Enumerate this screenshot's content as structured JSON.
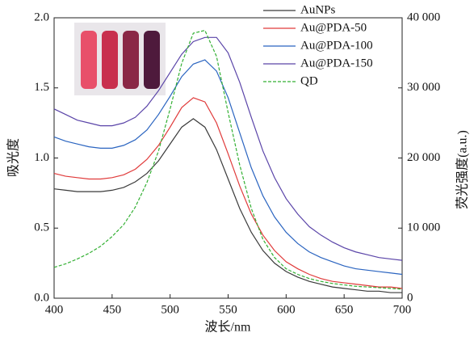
{
  "chart_data": {
    "type": "line",
    "x": [
      400,
      410,
      420,
      430,
      440,
      450,
      460,
      470,
      480,
      490,
      500,
      510,
      520,
      530,
      540,
      550,
      560,
      570,
      580,
      590,
      600,
      610,
      620,
      630,
      640,
      650,
      660,
      670,
      680,
      690,
      700
    ],
    "xlabel": "波长/nm",
    "ylabel": "吸光度",
    "y2label": "荧光强度(a.u.)",
    "xlim": [
      400,
      700
    ],
    "xticks": [
      400,
      450,
      500,
      550,
      600,
      650,
      700
    ],
    "ylim": [
      0,
      2
    ],
    "yticks": [
      {
        "value": 0,
        "label": "0.0"
      },
      {
        "value": 0.5,
        "label": "0.5"
      },
      {
        "value": 1,
        "label": "1.0"
      },
      {
        "value": 1.5,
        "label": "1.5"
      },
      {
        "value": 2,
        "label": "2.0"
      }
    ],
    "y2lim": [
      0,
      40000
    ],
    "y2ticks": [
      0,
      {
        "value": 10000,
        "label": "10 000"
      },
      {
        "value": 20000,
        "label": "20 000"
      },
      {
        "value": 30000,
        "label": "30 000"
      },
      {
        "value": 40000,
        "label": "40 000"
      }
    ],
    "legend": "upper-right",
    "series": [
      {
        "name": "AuNPs",
        "color": "#3a3a3a",
        "style": "solid",
        "values": [
          0.78,
          0.77,
          0.76,
          0.76,
          0.76,
          0.77,
          0.79,
          0.83,
          0.89,
          0.98,
          1.1,
          1.22,
          1.28,
          1.22,
          1.06,
          0.85,
          0.64,
          0.47,
          0.34,
          0.25,
          0.19,
          0.15,
          0.12,
          0.1,
          0.08,
          0.07,
          0.06,
          0.05,
          0.05,
          0.04,
          0.04
        ]
      },
      {
        "name": "Au@PDA-50",
        "color": "#e03a3a",
        "style": "solid",
        "values": [
          0.89,
          0.87,
          0.86,
          0.85,
          0.85,
          0.86,
          0.88,
          0.92,
          0.99,
          1.09,
          1.22,
          1.36,
          1.43,
          1.4,
          1.25,
          1.03,
          0.8,
          0.6,
          0.45,
          0.34,
          0.26,
          0.21,
          0.17,
          0.14,
          0.12,
          0.11,
          0.1,
          0.09,
          0.08,
          0.08,
          0.07
        ]
      },
      {
        "name": "Au@PDA-100",
        "color": "#2a64c0",
        "style": "solid",
        "values": [
          1.15,
          1.12,
          1.1,
          1.08,
          1.07,
          1.07,
          1.09,
          1.13,
          1.2,
          1.31,
          1.44,
          1.58,
          1.67,
          1.7,
          1.62,
          1.43,
          1.18,
          0.93,
          0.73,
          0.58,
          0.47,
          0.39,
          0.33,
          0.29,
          0.26,
          0.23,
          0.21,
          0.2,
          0.19,
          0.18,
          0.17
        ]
      },
      {
        "name": "Au@PDA-150",
        "color": "#5a44a8",
        "style": "solid",
        "values": [
          1.35,
          1.31,
          1.27,
          1.25,
          1.23,
          1.23,
          1.25,
          1.29,
          1.37,
          1.48,
          1.61,
          1.74,
          1.83,
          1.86,
          1.86,
          1.75,
          1.54,
          1.29,
          1.05,
          0.86,
          0.71,
          0.6,
          0.51,
          0.45,
          0.4,
          0.36,
          0.33,
          0.31,
          0.29,
          0.28,
          0.27
        ]
      },
      {
        "name": "QD",
        "color": "#33b033",
        "style": "dashed",
        "axis": "y2",
        "values": [
          4400,
          4900,
          5600,
          6400,
          7400,
          8800,
          10500,
          13000,
          16500,
          21000,
          27000,
          33500,
          37800,
          38200,
          34500,
          26500,
          19000,
          12800,
          8400,
          5800,
          4200,
          3400,
          2800,
          2400,
          2100,
          1900,
          1700,
          1600,
          1500,
          1400,
          1300
        ]
      }
    ]
  }
}
